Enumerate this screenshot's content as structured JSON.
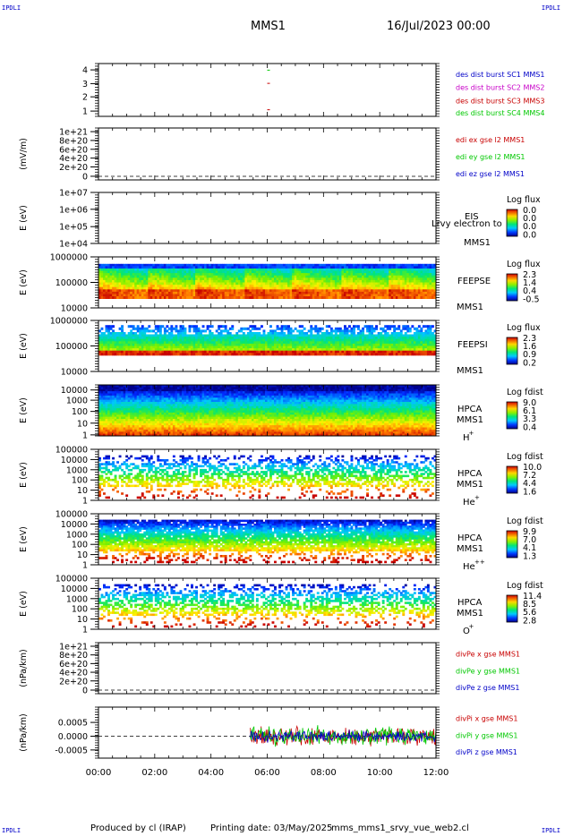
{
  "corner_labels": [
    "IPDLI",
    "IPDLI",
    "IPDLI",
    "IPDLI"
  ],
  "header": {
    "spacecraft": "MMS1",
    "date": "16/Jul/2023 00:00"
  },
  "footer": {
    "produced_by": "Produced by cl (IRAP)",
    "printing_date": "Printing date: 03/May/2025",
    "script": "mms_mms1_srvy_vue_web2.cl"
  },
  "colors": {
    "sc1": "#0000c8",
    "sc2": "#c800c8",
    "sc3": "#c80000",
    "sc4": "#00c800",
    "axis": "#000000"
  },
  "chart_data": [
    {
      "type": "scatter",
      "ytick_labels": [
        "4",
        "3",
        "2",
        "1"
      ],
      "ylim": [
        0.5,
        4.5
      ],
      "points": [
        [
          6.0,
          4
        ],
        [
          6.0,
          3
        ],
        [
          6.0,
          1
        ]
      ],
      "legend": [
        "des dist burst SC1 MMS1",
        "des dist burst SC2 MMS2",
        "des dist burst SC3 MMS3",
        "des dist burst SC4 MMS4"
      ]
    },
    {
      "type": "line",
      "ylabel": "(mV/m)",
      "ytick_labels": [
        "1e+21",
        "8e+20",
        "6e+20",
        "4e+20",
        "2e+20",
        "0"
      ],
      "ylim": [
        0,
        1e+21
      ],
      "legend": [
        "edi ex gse l2 MMS1",
        "edi ey gse l2 MMS1",
        "edi ez gse l2 MMS1"
      ]
    },
    {
      "type": "heatmap",
      "ylabel": "E (eV)",
      "yscale": "log",
      "ytick_labels": [
        "1e+07",
        "1e+06",
        "1e+05",
        "1e+04"
      ],
      "ylim": [
        10000.0,
        10000000.0
      ],
      "instrument": [
        "EIS",
        "MMS1"
      ],
      "overlay_text": "Lrvy electron to",
      "colorbar_title": "Log flux",
      "colorbar_labels": [
        "0.0",
        "0.0",
        "0.0",
        "0.0"
      ]
    },
    {
      "type": "heatmap",
      "ylabel": "E (eV)",
      "yscale": "log",
      "ytick_labels": [
        "1000000",
        "100000",
        "10000"
      ],
      "ylim": [
        10000.0,
        1000000.0
      ],
      "instrument": [
        "FEEPSE",
        "MMS1"
      ],
      "colorbar_title": "Log flux",
      "colorbar_labels": [
        "2.3",
        "1.4",
        "0.4",
        "-0.5"
      ]
    },
    {
      "type": "heatmap",
      "ylabel": "E (eV)",
      "yscale": "log",
      "ytick_labels": [
        "1000000",
        "100000",
        "10000"
      ],
      "ylim": [
        10000.0,
        1000000.0
      ],
      "instrument": [
        "FEEPSI",
        "MMS1"
      ],
      "colorbar_title": "Log flux",
      "colorbar_labels": [
        "2.3",
        "1.6",
        "0.9",
        "0.2"
      ]
    },
    {
      "type": "heatmap",
      "ylabel": "E (eV)",
      "yscale": "log",
      "ytick_labels": [
        "10000",
        "1000",
        "100",
        "10",
        "1"
      ],
      "ylim": [
        1,
        30000
      ],
      "instrument": [
        "HPCA",
        "MMS1"
      ],
      "species": "H",
      "species_charge": "+",
      "colorbar_title": "Log fdist",
      "colorbar_labels": [
        "9.0",
        "6.1",
        "3.3",
        "0.4"
      ]
    },
    {
      "type": "heatmap",
      "ylabel": "E (eV)",
      "yscale": "log",
      "ytick_labels": [
        "100000",
        "10000",
        "1000",
        "100",
        "10",
        "1"
      ],
      "ylim": [
        1,
        100000
      ],
      "instrument": [
        "HPCA",
        "MMS1"
      ],
      "species": "He",
      "species_charge": "+",
      "colorbar_title": "Log fdist",
      "colorbar_labels": [
        "10.0",
        "7.2",
        "4.4",
        "1.6"
      ]
    },
    {
      "type": "heatmap",
      "ylabel": "E (eV)",
      "yscale": "log",
      "ytick_labels": [
        "100000",
        "10000",
        "1000",
        "100",
        "10",
        "1"
      ],
      "ylim": [
        1,
        100000
      ],
      "instrument": [
        "HPCA",
        "MMS1"
      ],
      "species": "He",
      "species_charge": "++",
      "colorbar_title": "Log fdist",
      "colorbar_labels": [
        "9.9",
        "7.0",
        "4.1",
        "1.3"
      ]
    },
    {
      "type": "heatmap",
      "ylabel": "E (eV)",
      "yscale": "log",
      "ytick_labels": [
        "100000",
        "10000",
        "1000",
        "100",
        "10",
        "1"
      ],
      "ylim": [
        1,
        100000
      ],
      "instrument": [
        "HPCA",
        "MMS1"
      ],
      "species": "O",
      "species_charge": "+",
      "colorbar_title": "Log fdist",
      "colorbar_labels": [
        "11.4",
        "8.5",
        "5.6",
        "2.8"
      ]
    },
    {
      "type": "line",
      "ylabel": "(nPa/km)",
      "ytick_labels": [
        "1e+21",
        "8e+20",
        "6e+20",
        "4e+20",
        "2e+20",
        "0"
      ],
      "ylim": [
        0,
        1e+21
      ],
      "legend": [
        "divPe x gse MMS1",
        "divPe y gse MMS1",
        "divPe z gse MMS1"
      ]
    },
    {
      "type": "line",
      "ylabel": "(nPa/km)",
      "ytick_labels": [
        "0.0005",
        "0.0000",
        "-0.0005"
      ],
      "ylim": [
        -0.0008,
        0.0008
      ],
      "data_start_hour": 5.4,
      "amplitude": 0.0004,
      "legend": [
        "divPi x gse MMS1",
        "divPi y gse MMS1",
        "divPi z gse MMS1"
      ]
    }
  ],
  "x_axis": {
    "ticks": [
      "00:00",
      "02:00",
      "04:00",
      "06:00",
      "08:00",
      "10:00",
      "12:00"
    ],
    "range_hours": [
      0,
      12
    ]
  }
}
